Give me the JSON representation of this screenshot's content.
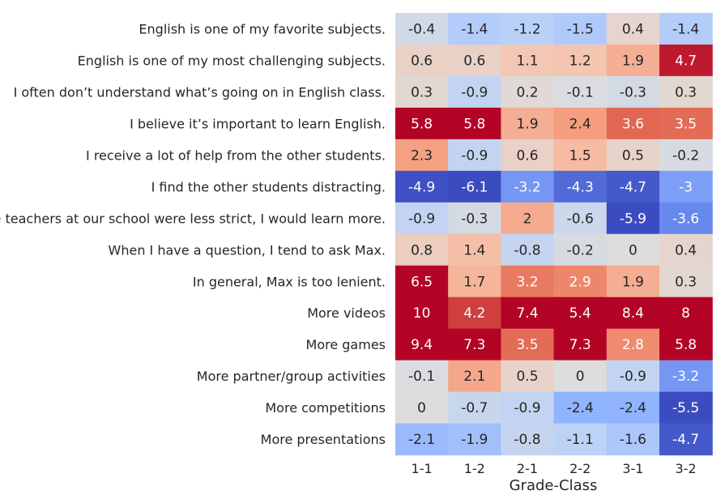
{
  "chart_data": {
    "type": "heatmap",
    "title": "",
    "xlabel": "Grade-Class",
    "ylabel": "",
    "colormap": "coolwarm",
    "vmin": -5,
    "vmax": 5,
    "columns": [
      "1-1",
      "1-2",
      "2-1",
      "2-2",
      "3-1",
      "3-2"
    ],
    "rows": [
      "English is one of my favorite subjects.",
      "English is one of my most challenging subjects.",
      "I often don’t understand what’s going on in English class.",
      "I believe it’s important to learn English.",
      "I receive a lot of help from the other students.",
      "I find the other students distracting.",
      "If the teachers at our school were less strict, I would learn more.",
      "When I have a question, I tend to ask Max.",
      "In general, Max is too lenient.",
      "More videos",
      "More games",
      "More partner/group activities",
      "More competitions",
      "More presentations"
    ],
    "values": [
      [
        -0.4,
        -1.4,
        -1.2,
        -1.5,
        0.4,
        -1.4
      ],
      [
        0.6,
        0.6,
        1.1,
        1.2,
        1.9,
        4.7
      ],
      [
        0.3,
        -0.9,
        0.2,
        -0.1,
        -0.3,
        0.3
      ],
      [
        5.8,
        5.8,
        1.9,
        2.4,
        3.6,
        3.5
      ],
      [
        2.3,
        -0.9,
        0.6,
        1.5,
        0.5,
        -0.2
      ],
      [
        -4.9,
        -6.1,
        -3.2,
        -4.3,
        -4.7,
        -3
      ],
      [
        -0.9,
        -0.3,
        2,
        -0.6,
        -5.9,
        -3.6
      ],
      [
        0.8,
        1.4,
        -0.8,
        -0.2,
        0,
        0.4
      ],
      [
        6.5,
        1.7,
        3.2,
        2.9,
        1.9,
        0.3
      ],
      [
        10,
        4.2,
        7.4,
        5.4,
        8.4,
        8
      ],
      [
        9.4,
        7.3,
        3.5,
        7.3,
        2.8,
        5.8
      ],
      [
        -0.1,
        2.1,
        0.5,
        0,
        -0.9,
        -3.2
      ],
      [
        0,
        -0.7,
        -0.9,
        -2.4,
        -2.4,
        -5.5
      ],
      [
        -2.1,
        -1.9,
        -0.8,
        -1.1,
        -1.6,
        -4.7
      ]
    ],
    "grid": false,
    "legend": "none"
  }
}
